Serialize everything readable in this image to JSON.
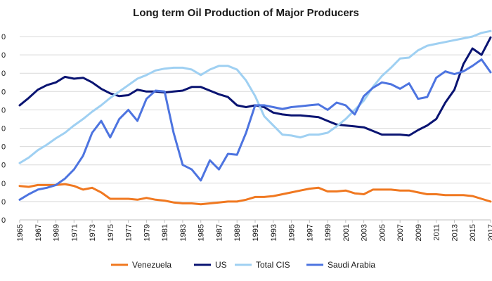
{
  "chart_data": {
    "type": "line",
    "title": "Long term Oil Production of Major Producers",
    "xlabel": "",
    "ylabel": "",
    "x_tick_labels": [
      "1965",
      "1967",
      "1969",
      "1971",
      "1973",
      "1975",
      "1977",
      "1979",
      "1981",
      "1983",
      "1985",
      "1987",
      "1989",
      "1991",
      "1993",
      "1995",
      "1997",
      "1999",
      "2001",
      "2003",
      "2005",
      "2007",
      "2009",
      "2011",
      "2013",
      "2015",
      "2017"
    ],
    "y_tick_labels": [
      "0",
      "0",
      "0",
      "0",
      "0",
      "0",
      "0",
      "0",
      "0",
      "0",
      "0"
    ],
    "ylim": [
      0,
      20
    ],
    "grid": true,
    "legend_position": "bottom",
    "x": [
      1965,
      1966,
      1967,
      1968,
      1969,
      1970,
      1971,
      1972,
      1973,
      1974,
      1975,
      1976,
      1977,
      1978,
      1979,
      1980,
      1981,
      1982,
      1983,
      1984,
      1985,
      1986,
      1987,
      1988,
      1989,
      1990,
      1991,
      1992,
      1993,
      1994,
      1995,
      1996,
      1997,
      1998,
      1999,
      2000,
      2001,
      2002,
      2003,
      2004,
      2005,
      2006,
      2007,
      2008,
      2009,
      2010,
      2011,
      2012,
      2013,
      2014,
      2015,
      2016,
      2017
    ],
    "series": [
      {
        "name": "Venezuela",
        "color": "#f07820",
        "values": [
          3.7,
          3.6,
          3.8,
          3.8,
          3.8,
          3.9,
          3.7,
          3.3,
          3.5,
          3.0,
          2.3,
          2.3,
          2.3,
          2.2,
          2.4,
          2.2,
          2.1,
          1.9,
          1.8,
          1.8,
          1.7,
          1.8,
          1.9,
          2.0,
          2.0,
          2.2,
          2.5,
          2.5,
          2.6,
          2.8,
          3.0,
          3.2,
          3.4,
          3.5,
          3.1,
          3.1,
          3.2,
          2.9,
          2.8,
          3.3,
          3.3,
          3.3,
          3.2,
          3.2,
          3.0,
          2.8,
          2.8,
          2.7,
          2.7,
          2.7,
          2.6,
          2.3,
          2.0
        ]
      },
      {
        "name": "US",
        "color": "#0a1472",
        "values": [
          12.5,
          13.3,
          14.2,
          14.7,
          15.0,
          15.6,
          15.4,
          15.5,
          15.0,
          14.3,
          13.8,
          13.5,
          13.6,
          14.2,
          14.0,
          14.0,
          13.9,
          14.0,
          14.1,
          14.5,
          14.5,
          14.1,
          13.7,
          13.4,
          12.5,
          12.3,
          12.5,
          12.3,
          11.7,
          11.5,
          11.4,
          11.4,
          11.3,
          11.2,
          10.8,
          10.4,
          10.3,
          10.2,
          10.1,
          9.7,
          9.3,
          9.3,
          9.3,
          9.2,
          9.8,
          10.3,
          11.0,
          12.8,
          14.2,
          17.0,
          18.7,
          18.0,
          19.9
        ]
      },
      {
        "name": "Total CIS",
        "color": "#9fd0f2",
        "values": [
          6.2,
          6.8,
          7.6,
          8.2,
          8.9,
          9.5,
          10.3,
          11.0,
          11.8,
          12.5,
          13.3,
          14.0,
          14.7,
          15.4,
          15.8,
          16.3,
          16.5,
          16.6,
          16.6,
          16.4,
          15.8,
          16.4,
          16.8,
          16.8,
          16.4,
          15.2,
          13.5,
          11.3,
          10.3,
          9.3,
          9.2,
          9.0,
          9.3,
          9.3,
          9.5,
          10.2,
          11.0,
          12.0,
          13.0,
          14.5,
          15.7,
          16.6,
          17.6,
          17.7,
          18.5,
          19.0,
          19.2,
          19.4,
          19.6,
          19.8,
          20.0,
          20.4,
          20.6
        ]
      },
      {
        "name": "Saudi Arabia",
        "color": "#4d74e0",
        "values": [
          2.2,
          2.8,
          3.3,
          3.5,
          3.8,
          4.5,
          5.5,
          7.0,
          9.5,
          10.8,
          9.0,
          11.0,
          12.0,
          10.8,
          13.2,
          14.1,
          14.0,
          9.5,
          6.0,
          5.5,
          4.3,
          6.5,
          5.5,
          7.2,
          7.1,
          9.5,
          12.5,
          12.5,
          12.3,
          12.1,
          12.3,
          12.4,
          12.5,
          12.6,
          12.0,
          12.8,
          12.5,
          11.5,
          13.5,
          14.4,
          15.0,
          14.8,
          14.3,
          14.9,
          13.2,
          13.4,
          15.5,
          16.2,
          15.9,
          16.2,
          16.8,
          17.5,
          16.1
        ]
      }
    ]
  }
}
